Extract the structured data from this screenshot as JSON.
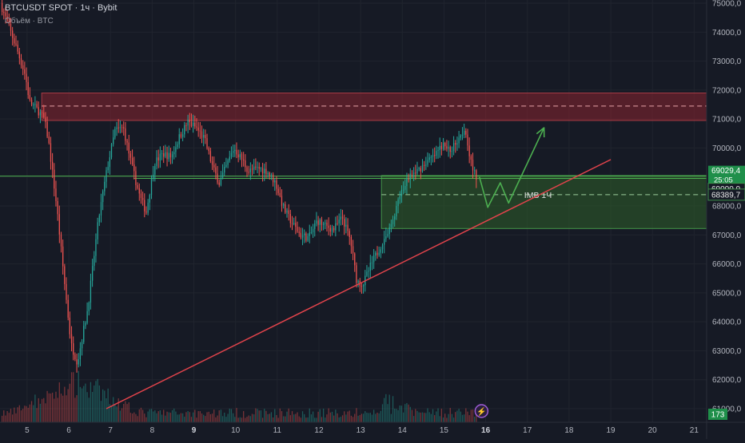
{
  "header": {
    "symbol": "BTCUSDT SPOT · 1ч · Bybit",
    "volume_label": "Объём · BTC"
  },
  "colors": {
    "background": "#161a25",
    "grid": "#20242e",
    "up": "#26a69a",
    "down": "#ef5350",
    "supply_zone": "#8b2530",
    "demand_zone": "#2d5a2a",
    "trendline": "#e0434b",
    "level": "#4caf50",
    "projection": "#4caf50",
    "price_tag": "#1f8f4a",
    "axis_text": "#b2b5be"
  },
  "chart_data": {
    "type": "candlestick",
    "y_axis": {
      "ticks": [
        "75000,0",
        "74000,0",
        "73000,0",
        "72000,0",
        "71000,0",
        "70000,0",
        "69000,0",
        "68000,0",
        "67000,0",
        "66000,0",
        "65000,0",
        "64000,0",
        "63000,0",
        "62000,0",
        "61000,0"
      ],
      "range": [
        61000,
        75000
      ]
    },
    "x_axis": {
      "ticks": [
        {
          "label": "5",
          "day": 5,
          "bold": false
        },
        {
          "label": "6",
          "day": 6,
          "bold": false
        },
        {
          "label": "7",
          "day": 7,
          "bold": false
        },
        {
          "label": "8",
          "day": 8,
          "bold": false
        },
        {
          "label": "9",
          "day": 9,
          "bold": true
        },
        {
          "label": "10",
          "day": 10,
          "bold": false
        },
        {
          "label": "11",
          "day": 11,
          "bold": false
        },
        {
          "label": "12",
          "day": 12,
          "bold": false
        },
        {
          "label": "13",
          "day": 13,
          "bold": false
        },
        {
          "label": "14",
          "day": 14,
          "bold": false
        },
        {
          "label": "15",
          "day": 15,
          "bold": false
        },
        {
          "label": "16",
          "day": 16,
          "bold": true
        },
        {
          "label": "17",
          "day": 17,
          "bold": false
        },
        {
          "label": "18",
          "day": 18,
          "bold": false
        },
        {
          "label": "19",
          "day": 19,
          "bold": false
        },
        {
          "label": "20",
          "day": 20,
          "bold": false
        },
        {
          "label": "21",
          "day": 21,
          "bold": false
        }
      ],
      "range": [
        4.35,
        21.3
      ]
    },
    "price_path": [
      [
        4.4,
        75000
      ],
      [
        4.6,
        74200
      ],
      [
        4.8,
        73400
      ],
      [
        5.0,
        72500
      ],
      [
        5.1,
        71600
      ],
      [
        5.3,
        71300
      ],
      [
        5.45,
        71000
      ],
      [
        5.55,
        70300
      ],
      [
        5.75,
        68000
      ],
      [
        5.95,
        65200
      ],
      [
        6.1,
        63200
      ],
      [
        6.25,
        62600
      ],
      [
        6.5,
        64500
      ],
      [
        6.75,
        67500
      ],
      [
        6.95,
        69200
      ],
      [
        7.15,
        70600
      ],
      [
        7.35,
        70700
      ],
      [
        7.55,
        69400
      ],
      [
        7.75,
        68300
      ],
      [
        7.9,
        67800
      ],
      [
        8.1,
        69500
      ],
      [
        8.3,
        69800
      ],
      [
        8.5,
        69700
      ],
      [
        8.7,
        70400
      ],
      [
        8.9,
        70900
      ],
      [
        9.1,
        70700
      ],
      [
        9.3,
        70300
      ],
      [
        9.5,
        69300
      ],
      [
        9.65,
        68800
      ],
      [
        9.8,
        69300
      ],
      [
        10.0,
        70000
      ],
      [
        10.2,
        69600
      ],
      [
        10.35,
        69200
      ],
      [
        10.6,
        69300
      ],
      [
        10.8,
        69200
      ],
      [
        11.0,
        68800
      ],
      [
        11.2,
        67900
      ],
      [
        11.4,
        67400
      ],
      [
        11.6,
        67000
      ],
      [
        11.8,
        66900
      ],
      [
        12.0,
        67500
      ],
      [
        12.2,
        67300
      ],
      [
        12.4,
        67200
      ],
      [
        12.6,
        67600
      ],
      [
        12.8,
        66800
      ],
      [
        12.95,
        65400
      ],
      [
        13.1,
        65300
      ],
      [
        13.3,
        66000
      ],
      [
        13.55,
        66700
      ],
      [
        13.75,
        67200
      ],
      [
        13.95,
        68200
      ],
      [
        14.2,
        69000
      ],
      [
        14.4,
        69200
      ],
      [
        14.6,
        69500
      ],
      [
        14.8,
        69700
      ],
      [
        15.0,
        70100
      ],
      [
        15.2,
        69900
      ],
      [
        15.4,
        70400
      ],
      [
        15.55,
        70700
      ],
      [
        15.7,
        69400
      ],
      [
        15.8,
        69029.4
      ]
    ],
    "volume_peak_day": 6.2,
    "volume_max_btc": 3000,
    "zones": [
      {
        "name": "supply-zone",
        "x1": 5.35,
        "x2": 21.3,
        "y_top": 71900,
        "y_bottom": 70950,
        "mid": 71450
      },
      {
        "name": "demand-zone",
        "x1": 13.5,
        "x2": 21.3,
        "y_top": 69050,
        "y_bottom": 67220,
        "mid": 68389.7,
        "label": "IMB 1Ч"
      }
    ],
    "levels": [
      {
        "name": "current-level",
        "x1": 4.35,
        "x2": 21.3,
        "value": 69029.4
      },
      {
        "name": "support-level",
        "x1": 7.55,
        "x2": 21.3,
        "value": 68950
      }
    ],
    "trendline": [
      [
        6.9,
        61000
      ],
      [
        19.0,
        69600
      ]
    ],
    "projection": [
      [
        15.85,
        69000
      ],
      [
        16.05,
        67950
      ],
      [
        16.35,
        68800
      ],
      [
        16.55,
        68100
      ],
      [
        17.4,
        70700
      ]
    ],
    "price_tags": [
      {
        "value": 69029.4,
        "label": "69029,4",
        "countdown": "25:05",
        "style": "filled"
      },
      {
        "value": 69000.9,
        "label": "69000,9",
        "style": "outline"
      },
      {
        "value": 68389.7,
        "label": "68389,7",
        "style": "outline"
      }
    ],
    "volume_tag": "173",
    "event_marker_day": 15.9
  }
}
